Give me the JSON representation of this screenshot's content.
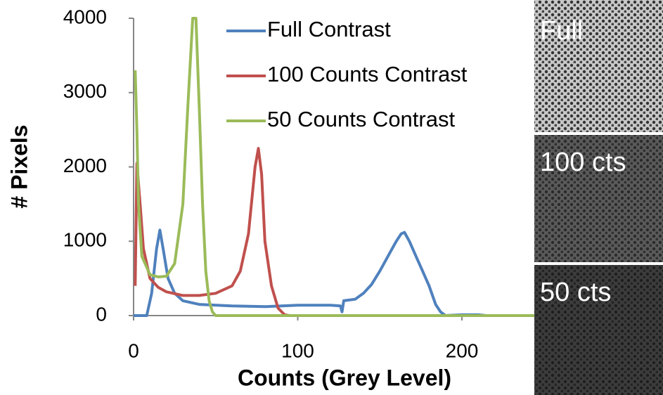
{
  "chart_data": {
    "type": "line",
    "xlabel": "Counts (Grey Level)",
    "ylabel": "# Pixels",
    "xlim": [
      0,
      250
    ],
    "ylim": [
      0,
      4000
    ],
    "xticks": [
      0,
      100,
      200
    ],
    "yticks": [
      0,
      1000,
      2000,
      3000,
      4000
    ],
    "legend": "top",
    "series": [
      {
        "name": "Full Contrast",
        "color": "#4f81bd",
        "x": [
          0,
          8,
          11,
          14,
          16,
          18,
          21,
          25,
          30,
          40,
          60,
          80,
          100,
          120,
          126,
          127,
          128,
          135,
          140,
          145,
          150,
          155,
          160,
          163,
          165,
          168,
          172,
          176,
          180,
          184,
          187,
          190,
          200,
          210,
          215,
          250
        ],
        "values": [
          0,
          0,
          300,
          900,
          1150,
          900,
          500,
          300,
          200,
          150,
          130,
          120,
          140,
          140,
          130,
          50,
          200,
          220,
          300,
          420,
          600,
          800,
          1000,
          1100,
          1120,
          1000,
          800,
          600,
          400,
          150,
          50,
          0,
          10,
          10,
          0,
          0
        ]
      },
      {
        "name": "100 Counts Contrast",
        "color": "#c0504d",
        "x": [
          1,
          2,
          4,
          6,
          10,
          15,
          20,
          30,
          40,
          50,
          60,
          65,
          70,
          74,
          76,
          78,
          80,
          84,
          88,
          92,
          95,
          250
        ],
        "values": [
          400,
          2050,
          1500,
          900,
          500,
          380,
          320,
          270,
          270,
          300,
          400,
          600,
          1100,
          2000,
          2250,
          1900,
          1000,
          400,
          100,
          10,
          0,
          0
        ]
      },
      {
        "name": "50 Counts Contrast",
        "color": "#9bbb59",
        "x": [
          1,
          2,
          3,
          5,
          10,
          15,
          20,
          25,
          30,
          33,
          36,
          38,
          40,
          42,
          44,
          46,
          48,
          50,
          250
        ],
        "values": [
          3300,
          2500,
          1500,
          800,
          550,
          520,
          530,
          700,
          1500,
          2800,
          4000,
          4000,
          2800,
          1500,
          600,
          200,
          50,
          0,
          0
        ]
      }
    ]
  },
  "images": [
    {
      "label": "Full"
    },
    {
      "label": "100 cts"
    },
    {
      "label": "50 cts"
    }
  ]
}
